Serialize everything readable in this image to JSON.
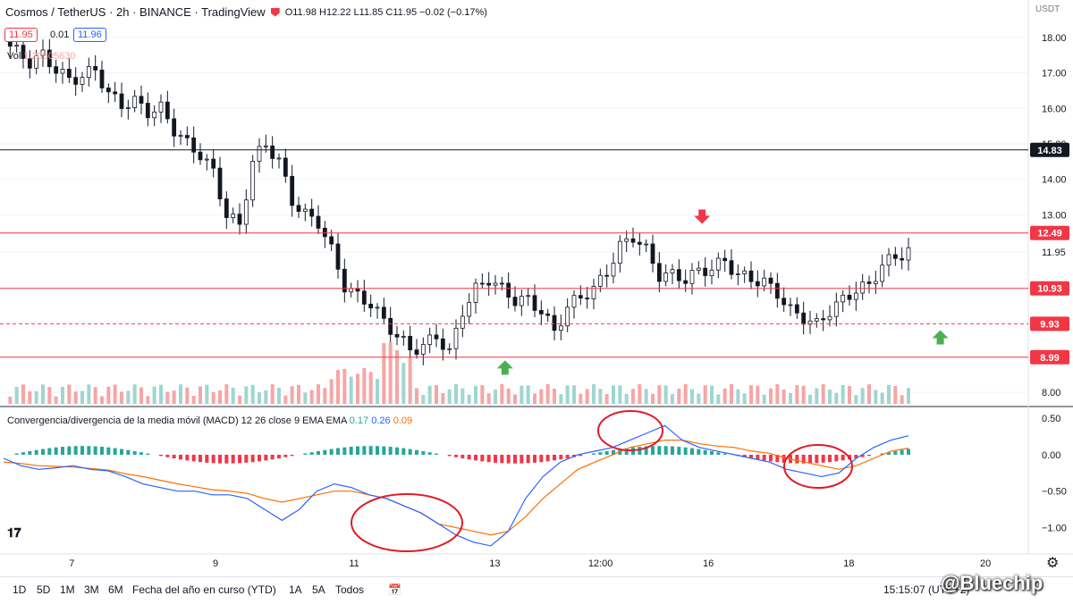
{
  "header": {
    "symbol": "Cosmos / TetherUS · 2h · BINANCE · TradingView",
    "ohlc": "O11.98 H12.22 L11.85 C11.95 −0.02 (−0.17%)",
    "bid": "11.95",
    "spread": "0.01",
    "ask": "11.96",
    "vol_label": "Vol",
    "vol_value": "1.20505630"
  },
  "currency": "USDT",
  "macd_legend": {
    "title": "Convergencia/divergencia de la media móvil (MACD) 12 26 close 9 EMA EMA",
    "hist": "0.17",
    "macd": "0.26",
    "signal": "0.09"
  },
  "colors": {
    "up": "#26a69a",
    "down": "#ef5350",
    "level": "#f23645",
    "macd": "#2962ff",
    "signal": "#ff6d00",
    "grid": "#f0f3fa"
  },
  "chart_data": [
    {
      "type": "candlestick",
      "title": "Cosmos / TetherUS · 2h · BINANCE · TradingView",
      "ylim": [
        7.6,
        18.6
      ],
      "y_ticks": [
        "18.00",
        "17.00",
        "16.00",
        "15.00",
        "14.00",
        "13.00",
        "11.95",
        "11.00",
        "10.00",
        "9.00",
        "8.00"
      ],
      "y_tick_values": [
        18,
        17,
        16,
        15,
        14,
        13,
        11.95,
        11,
        10,
        9,
        8
      ],
      "x_ticks": [
        "7",
        "9",
        "11",
        "13",
        "12:00",
        "16",
        "18",
        "20",
        "12:00"
      ],
      "x_tick_positions": [
        0.07,
        0.21,
        0.345,
        0.482,
        0.585,
        0.69,
        0.827,
        0.96,
        1.058
      ],
      "horizontal_levels": [
        {
          "value": 14.83,
          "label": "14.83",
          "color": "#131722",
          "style": "solid"
        },
        {
          "value": 12.49,
          "label": "12.49",
          "color": "#f23645",
          "style": "solid"
        },
        {
          "value": 10.93,
          "label": "10.93",
          "color": "#f23645",
          "style": "solid"
        },
        {
          "value": 9.93,
          "label": "9.93",
          "color": "#f23645",
          "style": "dashed"
        },
        {
          "value": 8.99,
          "label": "8.99",
          "color": "#f23645",
          "style": "solid"
        }
      ],
      "close_path": [
        17.9,
        17.6,
        17.3,
        17.5,
        17.1,
        16.8,
        16.9,
        17.1,
        16.4,
        16.1,
        16.2,
        15.9,
        16.0,
        15.4,
        15.0,
        14.7,
        14.2,
        13.0,
        12.7,
        14.5,
        15.0,
        14.5,
        13.4,
        13.0,
        12.8,
        12.0,
        11.0,
        10.7,
        10.5,
        10.0,
        9.6,
        9.2,
        9.3,
        9.6,
        9.1,
        10.3,
        10.9,
        11.2,
        10.9,
        10.6,
        10.6,
        10.3,
        9.7,
        10.4,
        10.7,
        10.9,
        11.4,
        12.1,
        12.4,
        12.0,
        11.3,
        11.3,
        11.2,
        11.4,
        11.5,
        11.7,
        11.3,
        11.2,
        11.1,
        10.8,
        10.3,
        10.1,
        9.9,
        10.3,
        10.6,
        10.9,
        11.0,
        11.6,
        11.8,
        12.0
      ],
      "volume_note": "volume bars along bottom of price pane",
      "annotations": [
        {
          "type": "arrow-down",
          "color": "#f23645",
          "x": 0.684,
          "value": 12.9
        },
        {
          "type": "arrow-up",
          "color": "#4caf50",
          "x": 0.492,
          "value": 8.75
        },
        {
          "type": "arrow-up",
          "color": "#4caf50",
          "x": 0.916,
          "value": 9.6
        }
      ]
    },
    {
      "type": "macd",
      "ylim": [
        -1.3,
        0.6
      ],
      "y_ticks": [
        "0.50",
        "0.00",
        "−0.50",
        "−1.00"
      ],
      "y_tick_values": [
        0.5,
        0,
        -0.5,
        -1.0
      ],
      "macd": [
        -0.05,
        -0.15,
        -0.2,
        -0.18,
        -0.15,
        -0.2,
        -0.22,
        -0.3,
        -0.4,
        -0.45,
        -0.5,
        -0.5,
        -0.55,
        -0.55,
        -0.6,
        -0.75,
        -0.9,
        -0.75,
        -0.5,
        -0.4,
        -0.45,
        -0.55,
        -0.6,
        -0.7,
        -0.8,
        -0.95,
        -1.1,
        -1.2,
        -1.25,
        -1.05,
        -0.6,
        -0.3,
        -0.1,
        0.0,
        0.05,
        0.1,
        0.2,
        0.3,
        0.4,
        0.2,
        0.1,
        0.05,
        0.0,
        -0.05,
        -0.1,
        -0.2,
        -0.25,
        -0.3,
        -0.25,
        -0.05,
        0.1,
        0.2,
        0.26
      ],
      "signal": [
        -0.1,
        -0.12,
        -0.15,
        -0.16,
        -0.17,
        -0.19,
        -0.21,
        -0.26,
        -0.3,
        -0.35,
        -0.4,
        -0.44,
        -0.48,
        -0.5,
        -0.53,
        -0.6,
        -0.65,
        -0.6,
        -0.55,
        -0.5,
        -0.5,
        -0.55,
        -0.6,
        -0.7,
        -0.8,
        -0.95,
        -1.0,
        -1.05,
        -1.1,
        -1.05,
        -0.85,
        -0.6,
        -0.4,
        -0.2,
        -0.1,
        0.0,
        0.1,
        0.15,
        0.2,
        0.2,
        0.15,
        0.12,
        0.1,
        0.05,
        0.02,
        -0.05,
        -0.1,
        -0.15,
        -0.2,
        -0.15,
        -0.05,
        0.05,
        0.09
      ],
      "annotations": [
        "red circles around MACD extremes"
      ]
    }
  ],
  "toolbar": {
    "ranges": [
      "1D",
      "5D",
      "1M",
      "3M",
      "6M",
      "Fecha del año en curso (YTD)",
      "1A",
      "5A",
      "Todos"
    ],
    "clock": "15:15:07 (UTC+2)",
    "brand": "@Bluechip"
  }
}
